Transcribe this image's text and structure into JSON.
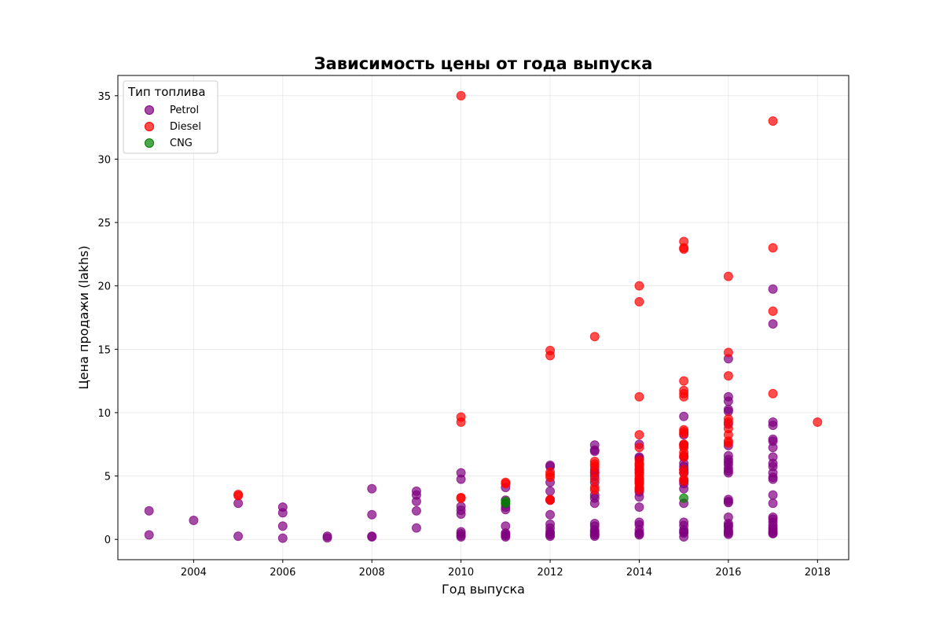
{
  "chart_data": {
    "type": "scatter",
    "title": "Зависимость цены от года выпуска",
    "xlabel": "Год выпуска",
    "ylabel": "Цена продажи (lakhs)",
    "xlim": [
      2002.3,
      2018.7
    ],
    "ylim": [
      -1.6,
      36.6
    ],
    "xticks": [
      2004,
      2006,
      2008,
      2010,
      2012,
      2014,
      2016,
      2018
    ],
    "yticks": [
      0,
      5,
      10,
      15,
      20,
      25,
      30,
      35
    ],
    "grid": true,
    "legend": {
      "title": "Тип топлива",
      "placement": "top-left"
    },
    "series": [
      {
        "name": "Petrol",
        "color": "#800080",
        "points": [
          [
            2003,
            2.25
          ],
          [
            2003,
            0.35
          ],
          [
            2004,
            1.5
          ],
          [
            2005,
            2.85
          ],
          [
            2005,
            0.25
          ],
          [
            2006,
            2.55
          ],
          [
            2006,
            2.1
          ],
          [
            2006,
            1.05
          ],
          [
            2006,
            0.1
          ],
          [
            2007,
            0.25
          ],
          [
            2007,
            0.12
          ],
          [
            2008,
            4.0
          ],
          [
            2008,
            1.95
          ],
          [
            2008,
            0.25
          ],
          [
            2008,
            0.2
          ],
          [
            2009,
            3.8
          ],
          [
            2009,
            3.5
          ],
          [
            2009,
            3.0
          ],
          [
            2009,
            2.25
          ],
          [
            2009,
            0.9
          ],
          [
            2010,
            5.25
          ],
          [
            2010,
            4.75
          ],
          [
            2010,
            2.6
          ],
          [
            2010,
            2.3
          ],
          [
            2010,
            2.0
          ],
          [
            2010,
            0.6
          ],
          [
            2010,
            0.45
          ],
          [
            2010,
            0.3
          ],
          [
            2010,
            0.2
          ],
          [
            2011,
            4.1
          ],
          [
            2011,
            3.1
          ],
          [
            2011,
            2.8
          ],
          [
            2011,
            2.55
          ],
          [
            2011,
            2.35
          ],
          [
            2011,
            1.05
          ],
          [
            2011,
            0.5
          ],
          [
            2011,
            0.4
          ],
          [
            2011,
            0.3
          ],
          [
            2011,
            0.2
          ],
          [
            2012,
            5.85
          ],
          [
            2012,
            5.75
          ],
          [
            2012,
            4.5
          ],
          [
            2012,
            3.8
          ],
          [
            2012,
            3.1
          ],
          [
            2012,
            1.95
          ],
          [
            2012,
            1.2
          ],
          [
            2012,
            0.9
          ],
          [
            2012,
            0.6
          ],
          [
            2012,
            0.45
          ],
          [
            2012,
            0.35
          ],
          [
            2012,
            0.25
          ],
          [
            2013,
            7.45
          ],
          [
            2013,
            7.05
          ],
          [
            2013,
            6.95
          ],
          [
            2013,
            5.5
          ],
          [
            2013,
            5.25
          ],
          [
            2013,
            5.0
          ],
          [
            2013,
            4.5
          ],
          [
            2013,
            3.5
          ],
          [
            2013,
            3.25
          ],
          [
            2013,
            2.85
          ],
          [
            2013,
            1.25
          ],
          [
            2013,
            1.05
          ],
          [
            2013,
            0.75
          ],
          [
            2013,
            0.6
          ],
          [
            2013,
            0.45
          ],
          [
            2013,
            0.35
          ],
          [
            2013,
            0.25
          ],
          [
            2014,
            7.5
          ],
          [
            2014,
            6.5
          ],
          [
            2014,
            6.4
          ],
          [
            2014,
            5.9
          ],
          [
            2014,
            5.5
          ],
          [
            2014,
            5.25
          ],
          [
            2014,
            4.75
          ],
          [
            2014,
            4.5
          ],
          [
            2014,
            4.0
          ],
          [
            2014,
            3.75
          ],
          [
            2014,
            3.35
          ],
          [
            2014,
            2.55
          ],
          [
            2014,
            1.35
          ],
          [
            2014,
            1.15
          ],
          [
            2014,
            0.75
          ],
          [
            2014,
            0.5
          ],
          [
            2014,
            0.45
          ],
          [
            2014,
            0.35
          ],
          [
            2015,
            9.7
          ],
          [
            2015,
            8.25
          ],
          [
            2015,
            7.5
          ],
          [
            2015,
            6.5
          ],
          [
            2015,
            6.0
          ],
          [
            2015,
            5.75
          ],
          [
            2015,
            5.5
          ],
          [
            2015,
            5.25
          ],
          [
            2015,
            4.6
          ],
          [
            2015,
            4.4
          ],
          [
            2015,
            4.0
          ],
          [
            2015,
            2.85
          ],
          [
            2015,
            1.35
          ],
          [
            2015,
            1.1
          ],
          [
            2015,
            0.75
          ],
          [
            2015,
            0.6
          ],
          [
            2015,
            0.5
          ],
          [
            2015,
            0.2
          ],
          [
            2016,
            14.25
          ],
          [
            2016,
            11.25
          ],
          [
            2016,
            10.9
          ],
          [
            2016,
            10.25
          ],
          [
            2016,
            10.1
          ],
          [
            2016,
            9.1
          ],
          [
            2016,
            7.4
          ],
          [
            2016,
            6.6
          ],
          [
            2016,
            6.3
          ],
          [
            2016,
            6.1
          ],
          [
            2016,
            5.9
          ],
          [
            2016,
            5.6
          ],
          [
            2016,
            5.4
          ],
          [
            2016,
            5.25
          ],
          [
            2016,
            3.15
          ],
          [
            2016,
            3.0
          ],
          [
            2016,
            2.9
          ],
          [
            2016,
            1.75
          ],
          [
            2016,
            1.25
          ],
          [
            2016,
            1.1
          ],
          [
            2016,
            1.0
          ],
          [
            2016,
            0.75
          ],
          [
            2016,
            0.6
          ],
          [
            2016,
            0.5
          ],
          [
            2016,
            0.4
          ],
          [
            2017,
            19.75
          ],
          [
            2017,
            17.0
          ],
          [
            2017,
            9.25
          ],
          [
            2017,
            9.0
          ],
          [
            2017,
            7.9
          ],
          [
            2017,
            7.75
          ],
          [
            2017,
            7.25
          ],
          [
            2017,
            6.5
          ],
          [
            2017,
            6.0
          ],
          [
            2017,
            5.75
          ],
          [
            2017,
            5.25
          ],
          [
            2017,
            4.9
          ],
          [
            2017,
            4.75
          ],
          [
            2017,
            3.5
          ],
          [
            2017,
            2.85
          ],
          [
            2017,
            1.75
          ],
          [
            2017,
            1.6
          ],
          [
            2017,
            1.35
          ],
          [
            2017,
            1.1
          ],
          [
            2017,
            0.9
          ],
          [
            2017,
            0.75
          ],
          [
            2017,
            0.6
          ],
          [
            2017,
            0.5
          ],
          [
            2017,
            0.45
          ]
        ]
      },
      {
        "name": "Diesel",
        "color": "#ff0000",
        "points": [
          [
            2005,
            3.55
          ],
          [
            2005,
            3.45
          ],
          [
            2010,
            35.0
          ],
          [
            2010,
            9.65
          ],
          [
            2010,
            9.25
          ],
          [
            2010,
            3.3
          ],
          [
            2010,
            3.25
          ],
          [
            2011,
            4.5
          ],
          [
            2011,
            4.4
          ],
          [
            2012,
            14.9
          ],
          [
            2012,
            14.5
          ],
          [
            2012,
            5.3
          ],
          [
            2012,
            5.1
          ],
          [
            2012,
            4.9
          ],
          [
            2012,
            3.15
          ],
          [
            2012,
            3.1
          ],
          [
            2013,
            16.0
          ],
          [
            2013,
            6.15
          ],
          [
            2013,
            5.95
          ],
          [
            2013,
            5.75
          ],
          [
            2013,
            5.3
          ],
          [
            2013,
            4.75
          ],
          [
            2013,
            4.1
          ],
          [
            2013,
            3.9
          ],
          [
            2014,
            20.0
          ],
          [
            2014,
            18.75
          ],
          [
            2014,
            11.25
          ],
          [
            2014,
            8.25
          ],
          [
            2014,
            7.25
          ],
          [
            2014,
            6.25
          ],
          [
            2014,
            6.0
          ],
          [
            2014,
            5.75
          ],
          [
            2014,
            5.5
          ],
          [
            2014,
            5.25
          ],
          [
            2014,
            5.0
          ],
          [
            2014,
            4.75
          ],
          [
            2014,
            4.5
          ],
          [
            2014,
            4.4
          ],
          [
            2014,
            4.1
          ],
          [
            2014,
            3.9
          ],
          [
            2015,
            23.5
          ],
          [
            2015,
            23.0
          ],
          [
            2015,
            22.9
          ],
          [
            2015,
            12.5
          ],
          [
            2015,
            11.75
          ],
          [
            2015,
            11.5
          ],
          [
            2015,
            11.25
          ],
          [
            2015,
            8.65
          ],
          [
            2015,
            8.5
          ],
          [
            2015,
            8.35
          ],
          [
            2015,
            7.5
          ],
          [
            2015,
            7.4
          ],
          [
            2015,
            7.25
          ],
          [
            2015,
            6.85
          ],
          [
            2015,
            6.6
          ],
          [
            2015,
            6.5
          ],
          [
            2015,
            5.5
          ],
          [
            2015,
            5.25
          ],
          [
            2015,
            4.75
          ],
          [
            2015,
            4.6
          ],
          [
            2016,
            20.75
          ],
          [
            2016,
            14.75
          ],
          [
            2016,
            12.9
          ],
          [
            2016,
            9.5
          ],
          [
            2016,
            9.25
          ],
          [
            2016,
            8.75
          ],
          [
            2016,
            8.25
          ],
          [
            2016,
            7.75
          ],
          [
            2016,
            7.6
          ],
          [
            2017,
            33.0
          ],
          [
            2017,
            23.0
          ],
          [
            2017,
            18.0
          ],
          [
            2017,
            11.5
          ],
          [
            2018,
            9.25
          ]
        ]
      },
      {
        "name": "CNG",
        "color": "#008000",
        "points": [
          [
            2011,
            3.0
          ],
          [
            2011,
            2.85
          ],
          [
            2015,
            3.25
          ]
        ]
      }
    ]
  }
}
